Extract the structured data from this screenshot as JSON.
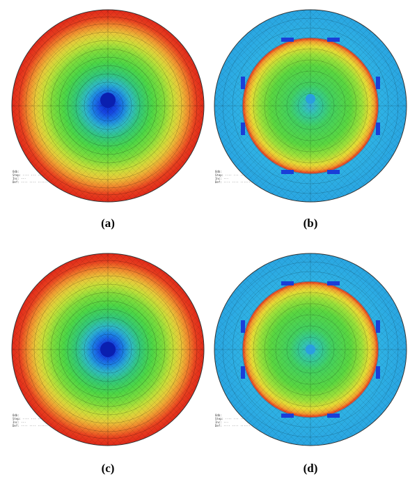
{
  "figure": {
    "panels": [
      {
        "id": "a",
        "caption": "(a)",
        "pattern": "radial-center-low"
      },
      {
        "id": "b",
        "caption": "(b)",
        "pattern": "ring-mid-high"
      },
      {
        "id": "c",
        "caption": "(c)",
        "pattern": "radial-center-low"
      },
      {
        "id": "d",
        "caption": "(d)",
        "pattern": "ring-mid-high"
      }
    ],
    "colormap": [
      "#0a2fd0",
      "#1c6fe8",
      "#2fb4d8",
      "#34c878",
      "#4cd646",
      "#9be23a",
      "#e8e23a",
      "#f5b13a",
      "#ee6a2a",
      "#e8301e"
    ]
  }
}
